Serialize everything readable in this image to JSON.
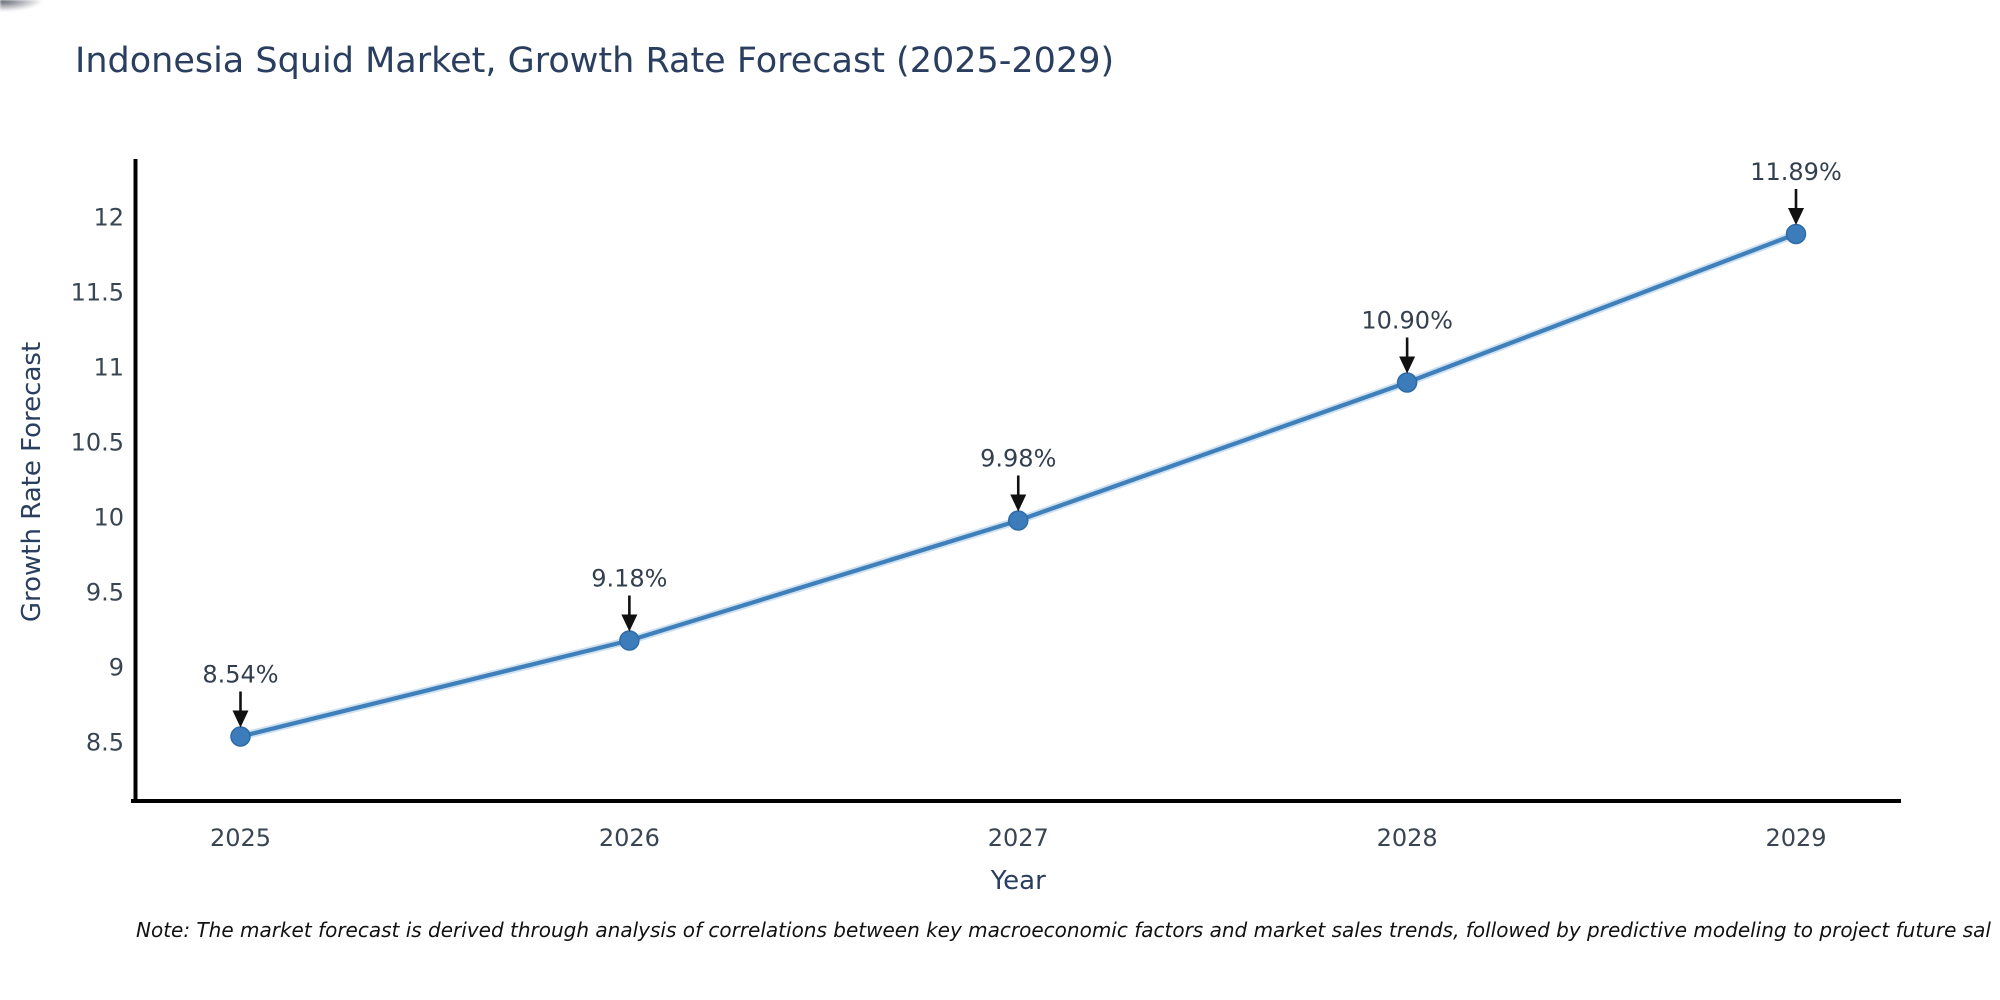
{
  "page": {
    "title": "Indonesia Squid Market, Growth Rate Forecast (2025-2029)",
    "note": "Note: The market forecast is derived through analysis of correlations between key macroeconomic factors and market sales trends, followed by predictive modeling to project future sal"
  },
  "chart_data": {
    "type": "line",
    "title": "Indonesia Squid Market, Growth Rate Forecast (2025-2029)",
    "xlabel": "Year",
    "ylabel": "Growth Rate Forecast",
    "x": [
      2025,
      2026,
      2027,
      2028,
      2029
    ],
    "y": [
      8.54,
      9.18,
      9.98,
      10.9,
      11.89
    ],
    "point_labels": [
      "8.54%",
      "9.18%",
      "9.98%",
      "10.90%",
      "11.89%"
    ],
    "xticks": [
      "2025",
      "2026",
      "2027",
      "2028",
      "2029"
    ],
    "yticks": [
      8.5,
      9,
      9.5,
      10,
      10.5,
      11,
      11.5,
      12
    ],
    "xlim": [
      2024.73,
      2029.27
    ],
    "ylim": [
      8.11,
      12.39
    ],
    "grid": false,
    "legend": "none",
    "colors": {
      "line": "#4080ba",
      "line_halo": "#a6c9e6",
      "marker": "#3d7cba",
      "marker_edge": "#2e6ca8",
      "axis": "#000000",
      "text": "#2a3f5f",
      "tick_text": "#3a4554",
      "annotation_text": "#333f4e",
      "arrow": "#111111",
      "note_text": "#111111",
      "background": "#ffffff"
    }
  }
}
